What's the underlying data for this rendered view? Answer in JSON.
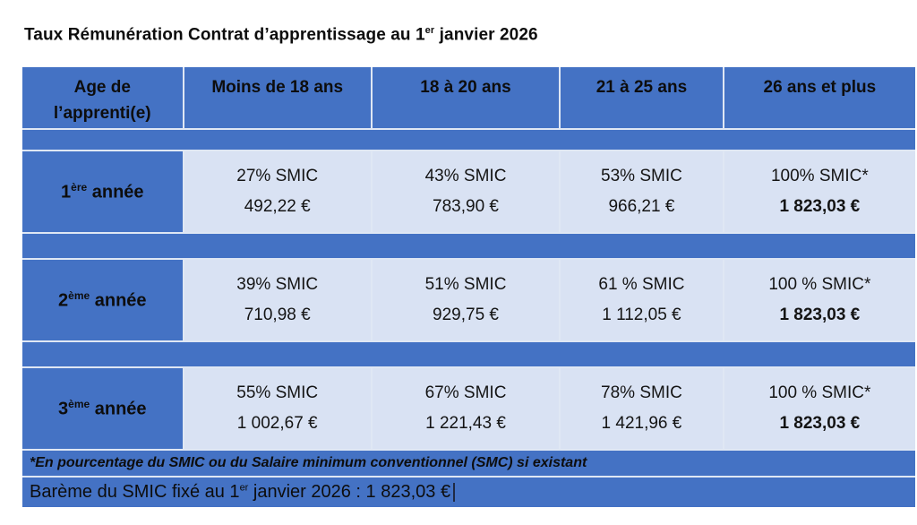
{
  "title": {
    "prefix": "Taux Rémunération Contrat d’apprentissage au 1",
    "sup": "er",
    "suffix": " janvier 2026"
  },
  "table": {
    "header": {
      "age_line1": "Age de",
      "age_line2": "l’apprenti(e)",
      "col1": "Moins de 18 ans",
      "col2": "18 à 20 ans",
      "col3": "21 à 25 ans",
      "col4": "26 ans et plus"
    },
    "rows": [
      {
        "label_num": "1",
        "label_sup": "ère",
        "label_rest": " année",
        "cells": [
          {
            "pct": "27% SMIC",
            "amount": "492,22 €"
          },
          {
            "pct": "43% SMIC",
            "amount": "783,90 €"
          },
          {
            "pct": "53% SMIC",
            "amount": "966,21 €"
          },
          {
            "pct": "100% SMIC*",
            "amount": "1 823,03 €"
          }
        ]
      },
      {
        "label_num": "2",
        "label_sup": "ème",
        "label_rest": " année",
        "cells": [
          {
            "pct": "39% SMIC",
            "amount": "710,98 €"
          },
          {
            "pct": "51% SMIC",
            "amount": "929,75 €"
          },
          {
            "pct": "61 % SMIC",
            "amount": "1 112,05 €"
          },
          {
            "pct": "100 % SMIC*",
            "amount": "1 823,03 €"
          }
        ]
      },
      {
        "label_num": "3",
        "label_sup": "ème",
        "label_rest": " année",
        "cells": [
          {
            "pct": "55% SMIC",
            "amount": "1 002,67 €"
          },
          {
            "pct": "67% SMIC",
            "amount": "1 221,43 €"
          },
          {
            "pct": "78% SMIC",
            "amount": "1 421,96 €"
          },
          {
            "pct": "100 % SMIC*",
            "amount": "1 823,03 €"
          }
        ]
      }
    ],
    "footnote": "*En pourcentage du SMIC ou du Salaire minimum conventionnel (SMC) si existant",
    "bareme": {
      "prefix": "Barème du SMIC fixé au 1",
      "sup": "er",
      "suffix": " janvier 2026 : 1 823,03 €"
    }
  },
  "colors": {
    "header_blue": "#4472c4",
    "cell_light_blue": "#d9e2f3",
    "text": "#0d0d0d"
  }
}
